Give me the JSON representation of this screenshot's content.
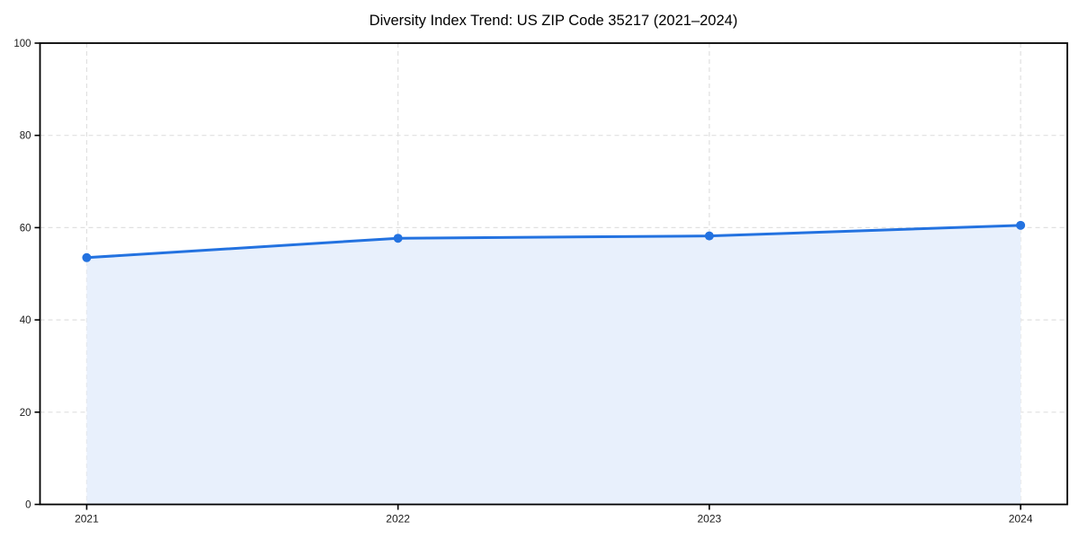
{
  "chart_data": {
    "type": "area",
    "title": "Diversity Index Trend: US ZIP Code 35217 (2021–2024)",
    "x": [
      2021,
      2022,
      2023,
      2024
    ],
    "series": [
      {
        "name": "Diversity Index",
        "values": [
          53.5,
          57.7,
          58.2,
          60.5
        ]
      }
    ],
    "xlabel": "",
    "ylabel": "",
    "xticks": [
      "2021",
      "2022",
      "2023",
      "2024"
    ],
    "yticks": [
      0,
      20,
      40,
      60,
      80,
      100
    ],
    "ylim": [
      0,
      100
    ],
    "x_margin_years": 0.15,
    "grid": true,
    "grid_style": "dashed",
    "legend_position": "none",
    "colors": {
      "line": "#2372e0",
      "marker": "#2372e0",
      "area_fill": "#e8f0fc",
      "gridline": "#e0e0e0",
      "axis_spine": "#000000",
      "tick_label": "#1a1a1a",
      "background": "#ffffff"
    },
    "marker_radius": 5,
    "line_width": 3
  }
}
